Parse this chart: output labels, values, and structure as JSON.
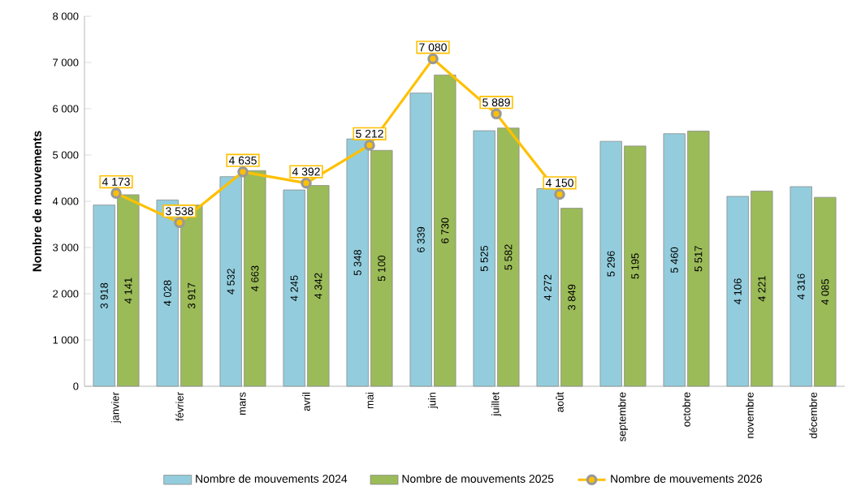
{
  "chart_data": {
    "type": "bar",
    "ylabel": "Nombre de mouvements",
    "categories": [
      "janvier",
      "février",
      "mars",
      "avril",
      "mai",
      "juin",
      "juillet",
      "août",
      "septembre",
      "octobre",
      "novembre",
      "décembre"
    ],
    "series": [
      {
        "name": "Nombre de mouvements 2024",
        "color": "#93cddd",
        "values": [
          3918,
          4028,
          4532,
          4245,
          5348,
          6339,
          5525,
          4272,
          5296,
          5460,
          4106,
          4316
        ],
        "value_labels": [
          "3 918",
          "4 028",
          "4 532",
          "4 245",
          "5 348",
          "6 339",
          "5 525",
          "4 272",
          "5 296",
          "5 460",
          "4 106",
          "4 316"
        ]
      },
      {
        "name": "Nombre de mouvements 2025",
        "color": "#9bbb59",
        "values": [
          4141,
          3917,
          4663,
          4342,
          5100,
          6730,
          5582,
          3849,
          5195,
          5517,
          4221,
          4085
        ],
        "value_labels": [
          "4 141",
          "3 917",
          "4 663",
          "4 342",
          "5 100",
          "6 730",
          "5 582",
          "3 849",
          "5 195",
          "5 517",
          "4 221",
          "4 085"
        ]
      },
      {
        "name": "Nombre de mouvements 2026",
        "type": "line",
        "color": "#ffc000",
        "marker": "circle",
        "values": [
          4173,
          3538,
          4635,
          4392,
          5212,
          7080,
          5889,
          4150,
          null,
          null,
          null,
          null
        ],
        "value_labels": [
          "4 173",
          "3 538",
          "4 635",
          "4 392",
          "5 212",
          "7 080",
          "5 889",
          "4 150",
          null,
          null,
          null,
          null
        ]
      }
    ],
    "ylim": [
      0,
      8000
    ],
    "yticks": [
      0,
      {
        "value": 1000,
        "label": "1 000"
      },
      {
        "value": 2000,
        "label": "2 000"
      },
      {
        "value": 3000,
        "label": "3 000"
      },
      {
        "value": 4000,
        "label": "4 000"
      },
      {
        "value": 5000,
        "label": "5 000"
      },
      {
        "value": 6000,
        "label": "6 000"
      },
      {
        "value": 7000,
        "label": "7 000"
      },
      {
        "value": 8000,
        "label": "8 000"
      }
    ],
    "legend": "bottom"
  }
}
